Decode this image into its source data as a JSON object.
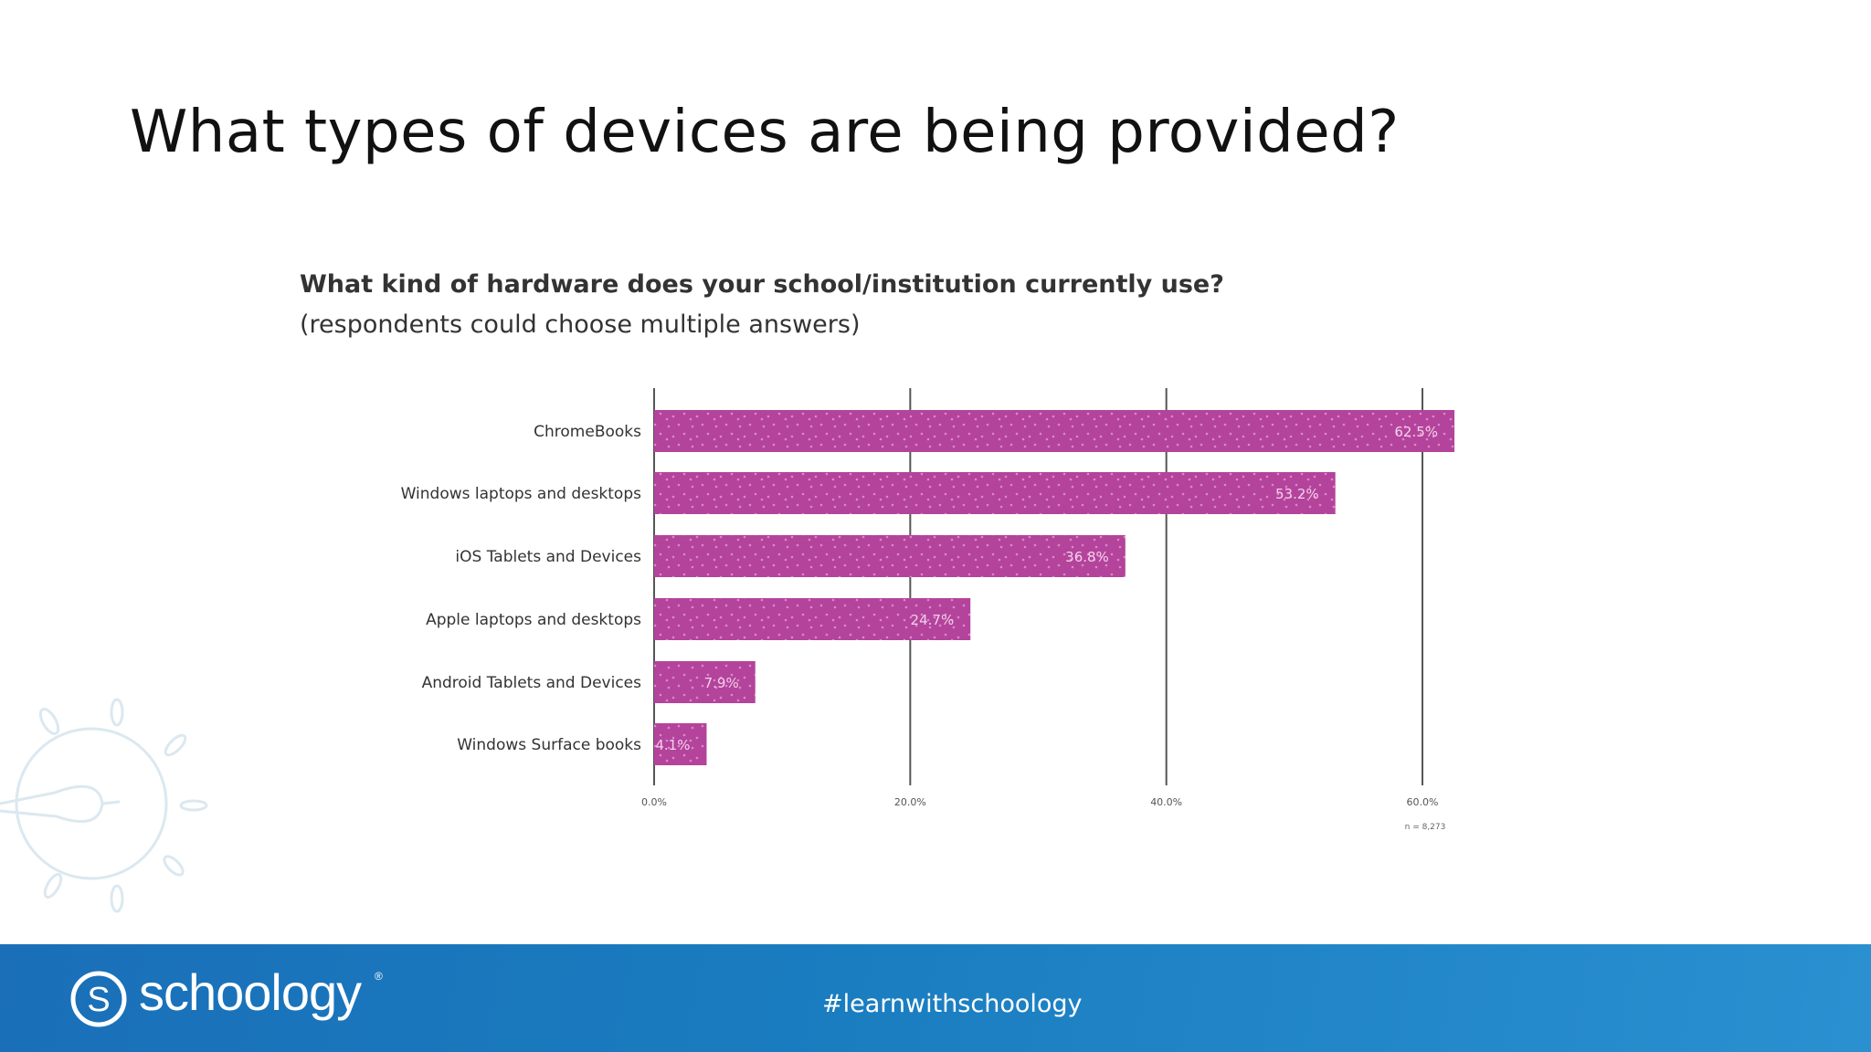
{
  "slide": {
    "title": "What types of devices are being provided?"
  },
  "chart_data": {
    "type": "bar",
    "orientation": "horizontal",
    "title": "What kind of hardware does your school/institution currently use?",
    "subtitle": "(respondents could choose multiple answers)",
    "categories": [
      "ChromeBooks",
      "Windows laptops and desktops",
      "iOS Tablets and Devices",
      "Apple laptops and desktops",
      "Android Tablets and Devices",
      "Windows Surface books"
    ],
    "values": [
      62.5,
      53.2,
      36.8,
      24.7,
      7.9,
      4.1
    ],
    "value_labels": [
      "62.5%",
      "53.2%",
      "36.8%",
      "24.7%",
      "7.9%",
      "4.1%"
    ],
    "x_ticks": [
      0,
      20,
      40,
      60
    ],
    "x_tick_labels": [
      "0.0%",
      "20.0%",
      "40.0%",
      "60.0%"
    ],
    "xlim": [
      0,
      60
    ],
    "grid": true,
    "note": "n = 8,273",
    "bar_color": "#b4439c"
  },
  "footer": {
    "brand": "schoology",
    "registered_mark": "®",
    "hashtag": "#learnwithschoology",
    "background_color": "#1a76bc"
  }
}
